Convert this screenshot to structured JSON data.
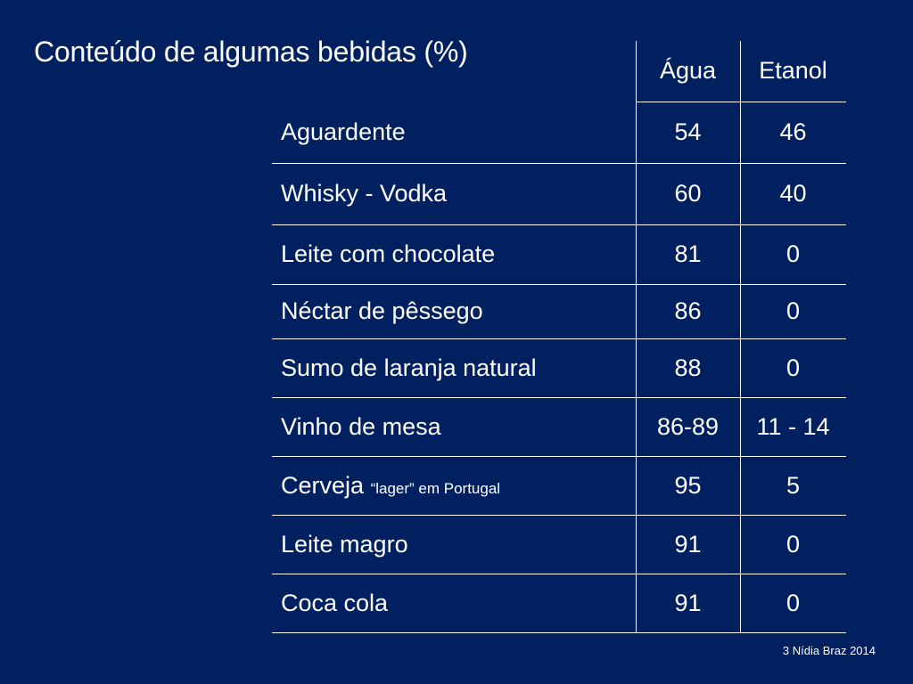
{
  "title": "Conteúdo de algumas bebidas (%)",
  "columns": [
    "Água",
    "Etanol"
  ],
  "rows": [
    {
      "name": "Aguardente",
      "note": "",
      "agua": "54",
      "etanol": "46"
    },
    {
      "name": "Whisky - Vodka",
      "note": "",
      "agua": "60",
      "etanol": "40"
    },
    {
      "name": "Leite com chocolate",
      "note": "",
      "agua": "81",
      "etanol": "0"
    },
    {
      "name": "Néctar de pêssego",
      "note": "",
      "agua": "86",
      "etanol": "0"
    },
    {
      "name": "Sumo de laranja natural",
      "note": "",
      "agua": "88",
      "etanol": "0"
    },
    {
      "name": "Vinho de mesa",
      "note": "",
      "agua": "86-89",
      "etanol": "11 - 14"
    },
    {
      "name": "Cerveja",
      "note": "“lager” em Portugal",
      "agua": "95",
      "etanol": "5"
    },
    {
      "name": "Leite magro",
      "note": "",
      "agua": "91",
      "etanol": "0"
    },
    {
      "name": "Coca cola",
      "note": "",
      "agua": "91",
      "etanol": "0"
    }
  ],
  "footer": "3 Nídia Braz 2014",
  "colors": {
    "background": "#002060",
    "text": "#ffffff"
  }
}
